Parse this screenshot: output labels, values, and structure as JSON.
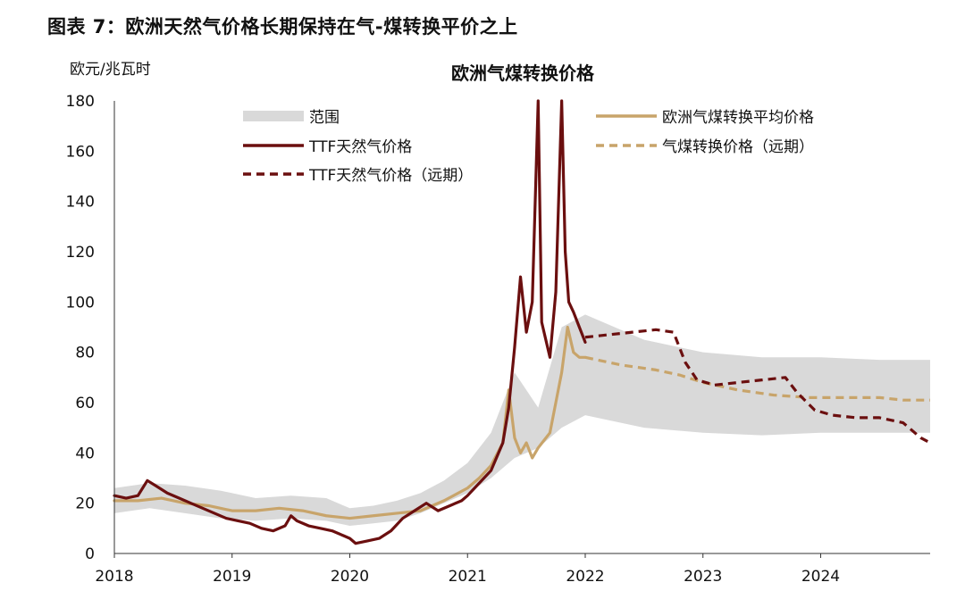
{
  "figure_title": "图表 7：欧洲天然气价格长期保持在气-煤转换平价之上",
  "chart_data": {
    "type": "line",
    "title": "欧洲气煤转换价格",
    "ylabel": "欧元/兆瓦时",
    "xlabel": "",
    "ylim": [
      0,
      180
    ],
    "yticks": [
      0,
      20,
      40,
      60,
      80,
      100,
      120,
      140,
      160,
      180
    ],
    "xlim": [
      2018.0,
      2024.93
    ],
    "xticks": [
      {
        "value": 2018,
        "label": "2018"
      },
      {
        "value": 2019,
        "label": "2019"
      },
      {
        "value": 2020,
        "label": "2020"
      },
      {
        "value": 2021,
        "label": "2021"
      },
      {
        "value": 2022,
        "label": "2022"
      },
      {
        "value": 2023,
        "label": "2023"
      },
      {
        "value": 2024,
        "label": "2024"
      }
    ],
    "grid": false,
    "legend_position": "top",
    "colors": {
      "range": "#d9d9d9",
      "ttf": "#6b0f0f",
      "switch_avg": "#c8a46a"
    },
    "series": [
      {
        "name": "范围",
        "kind": "band",
        "x": [
          2018.0,
          2018.3,
          2018.6,
          2018.9,
          2019.2,
          2019.5,
          2019.8,
          2020.0,
          2020.2,
          2020.4,
          2020.6,
          2020.8,
          2021.0,
          2021.2,
          2021.4,
          2021.6,
          2021.8,
          2022.0,
          2022.5,
          2023.0,
          2023.5,
          2024.0,
          2024.5,
          2024.93
        ],
        "lower": [
          16,
          18,
          16,
          14,
          13,
          14,
          13,
          11,
          12,
          13,
          16,
          20,
          24,
          30,
          38,
          42,
          50,
          55,
          50,
          48,
          47,
          48,
          48,
          48
        ],
        "upper": [
          26,
          28,
          27,
          25,
          22,
          23,
          22,
          18,
          19,
          21,
          24,
          29,
          36,
          48,
          72,
          58,
          90,
          95,
          85,
          80,
          78,
          78,
          77,
          77
        ]
      },
      {
        "name": "TTF天然气价格",
        "kind": "line",
        "style": "solid",
        "x": [
          2018.0,
          2018.1,
          2018.2,
          2018.28,
          2018.35,
          2018.45,
          2018.55,
          2018.65,
          2018.75,
          2018.85,
          2018.95,
          2019.05,
          2019.15,
          2019.25,
          2019.35,
          2019.45,
          2019.5,
          2019.55,
          2019.65,
          2019.75,
          2019.85,
          2019.95,
          2020.0,
          2020.05,
          2020.15,
          2020.25,
          2020.35,
          2020.45,
          2020.55,
          2020.65,
          2020.75,
          2020.85,
          2020.95,
          2021.0,
          2021.1,
          2021.2,
          2021.3,
          2021.35,
          2021.4,
          2021.45,
          2021.5,
          2021.55,
          2021.6,
          2021.63,
          2021.66,
          2021.7,
          2021.75,
          2021.8,
          2021.83,
          2021.86,
          2021.9,
          2021.95,
          2022.0
        ],
        "y": [
          23,
          22,
          23,
          29,
          27,
          24,
          22,
          20,
          18,
          16,
          14,
          13,
          12,
          10,
          9,
          11,
          15,
          13,
          11,
          10,
          9,
          7,
          6,
          4,
          5,
          6,
          9,
          14,
          17,
          20,
          17,
          19,
          21,
          23,
          28,
          33,
          44,
          58,
          82,
          110,
          88,
          100,
          182,
          92,
          86,
          78,
          104,
          182,
          120,
          100,
          96,
          90,
          84
        ]
      },
      {
        "name": "TTF天然气价格（远期）",
        "kind": "line",
        "style": "dashed",
        "x": [
          2022.0,
          2022.2,
          2022.4,
          2022.6,
          2022.75,
          2022.85,
          2022.95,
          2023.1,
          2023.3,
          2023.5,
          2023.7,
          2023.8,
          2023.95,
          2024.1,
          2024.3,
          2024.5,
          2024.7,
          2024.85,
          2024.93
        ],
        "y": [
          86,
          87,
          88,
          89,
          88,
          76,
          69,
          67,
          68,
          69,
          70,
          64,
          57,
          55,
          54,
          54,
          52,
          46,
          44
        ]
      },
      {
        "name": "欧洲气煤转换平均价格",
        "kind": "line",
        "style": "solid",
        "x": [
          2018.0,
          2018.2,
          2018.4,
          2018.6,
          2018.8,
          2019.0,
          2019.2,
          2019.4,
          2019.6,
          2019.8,
          2020.0,
          2020.2,
          2020.4,
          2020.6,
          2020.8,
          2021.0,
          2021.1,
          2021.2,
          2021.3,
          2021.35,
          2021.4,
          2021.45,
          2021.5,
          2021.55,
          2021.6,
          2021.65,
          2021.7,
          2021.75,
          2021.8,
          2021.85,
          2021.9,
          2021.95,
          2022.0
        ],
        "y": [
          21,
          21,
          22,
          20,
          19,
          17,
          17,
          18,
          17,
          15,
          14,
          15,
          16,
          17,
          21,
          26,
          30,
          35,
          44,
          65,
          46,
          40,
          44,
          38,
          42,
          45,
          48,
          60,
          72,
          90,
          80,
          78,
          78
        ]
      },
      {
        "name": "气煤转换价格（远期）",
        "kind": "line",
        "style": "dashed",
        "x": [
          2022.0,
          2022.3,
          2022.6,
          2022.8,
          2023.0,
          2023.3,
          2023.6,
          2023.9,
          2024.2,
          2024.5,
          2024.7,
          2024.93
        ],
        "y": [
          78,
          75,
          73,
          71,
          68,
          65,
          63,
          62,
          62,
          62,
          61,
          61
        ]
      }
    ]
  }
}
